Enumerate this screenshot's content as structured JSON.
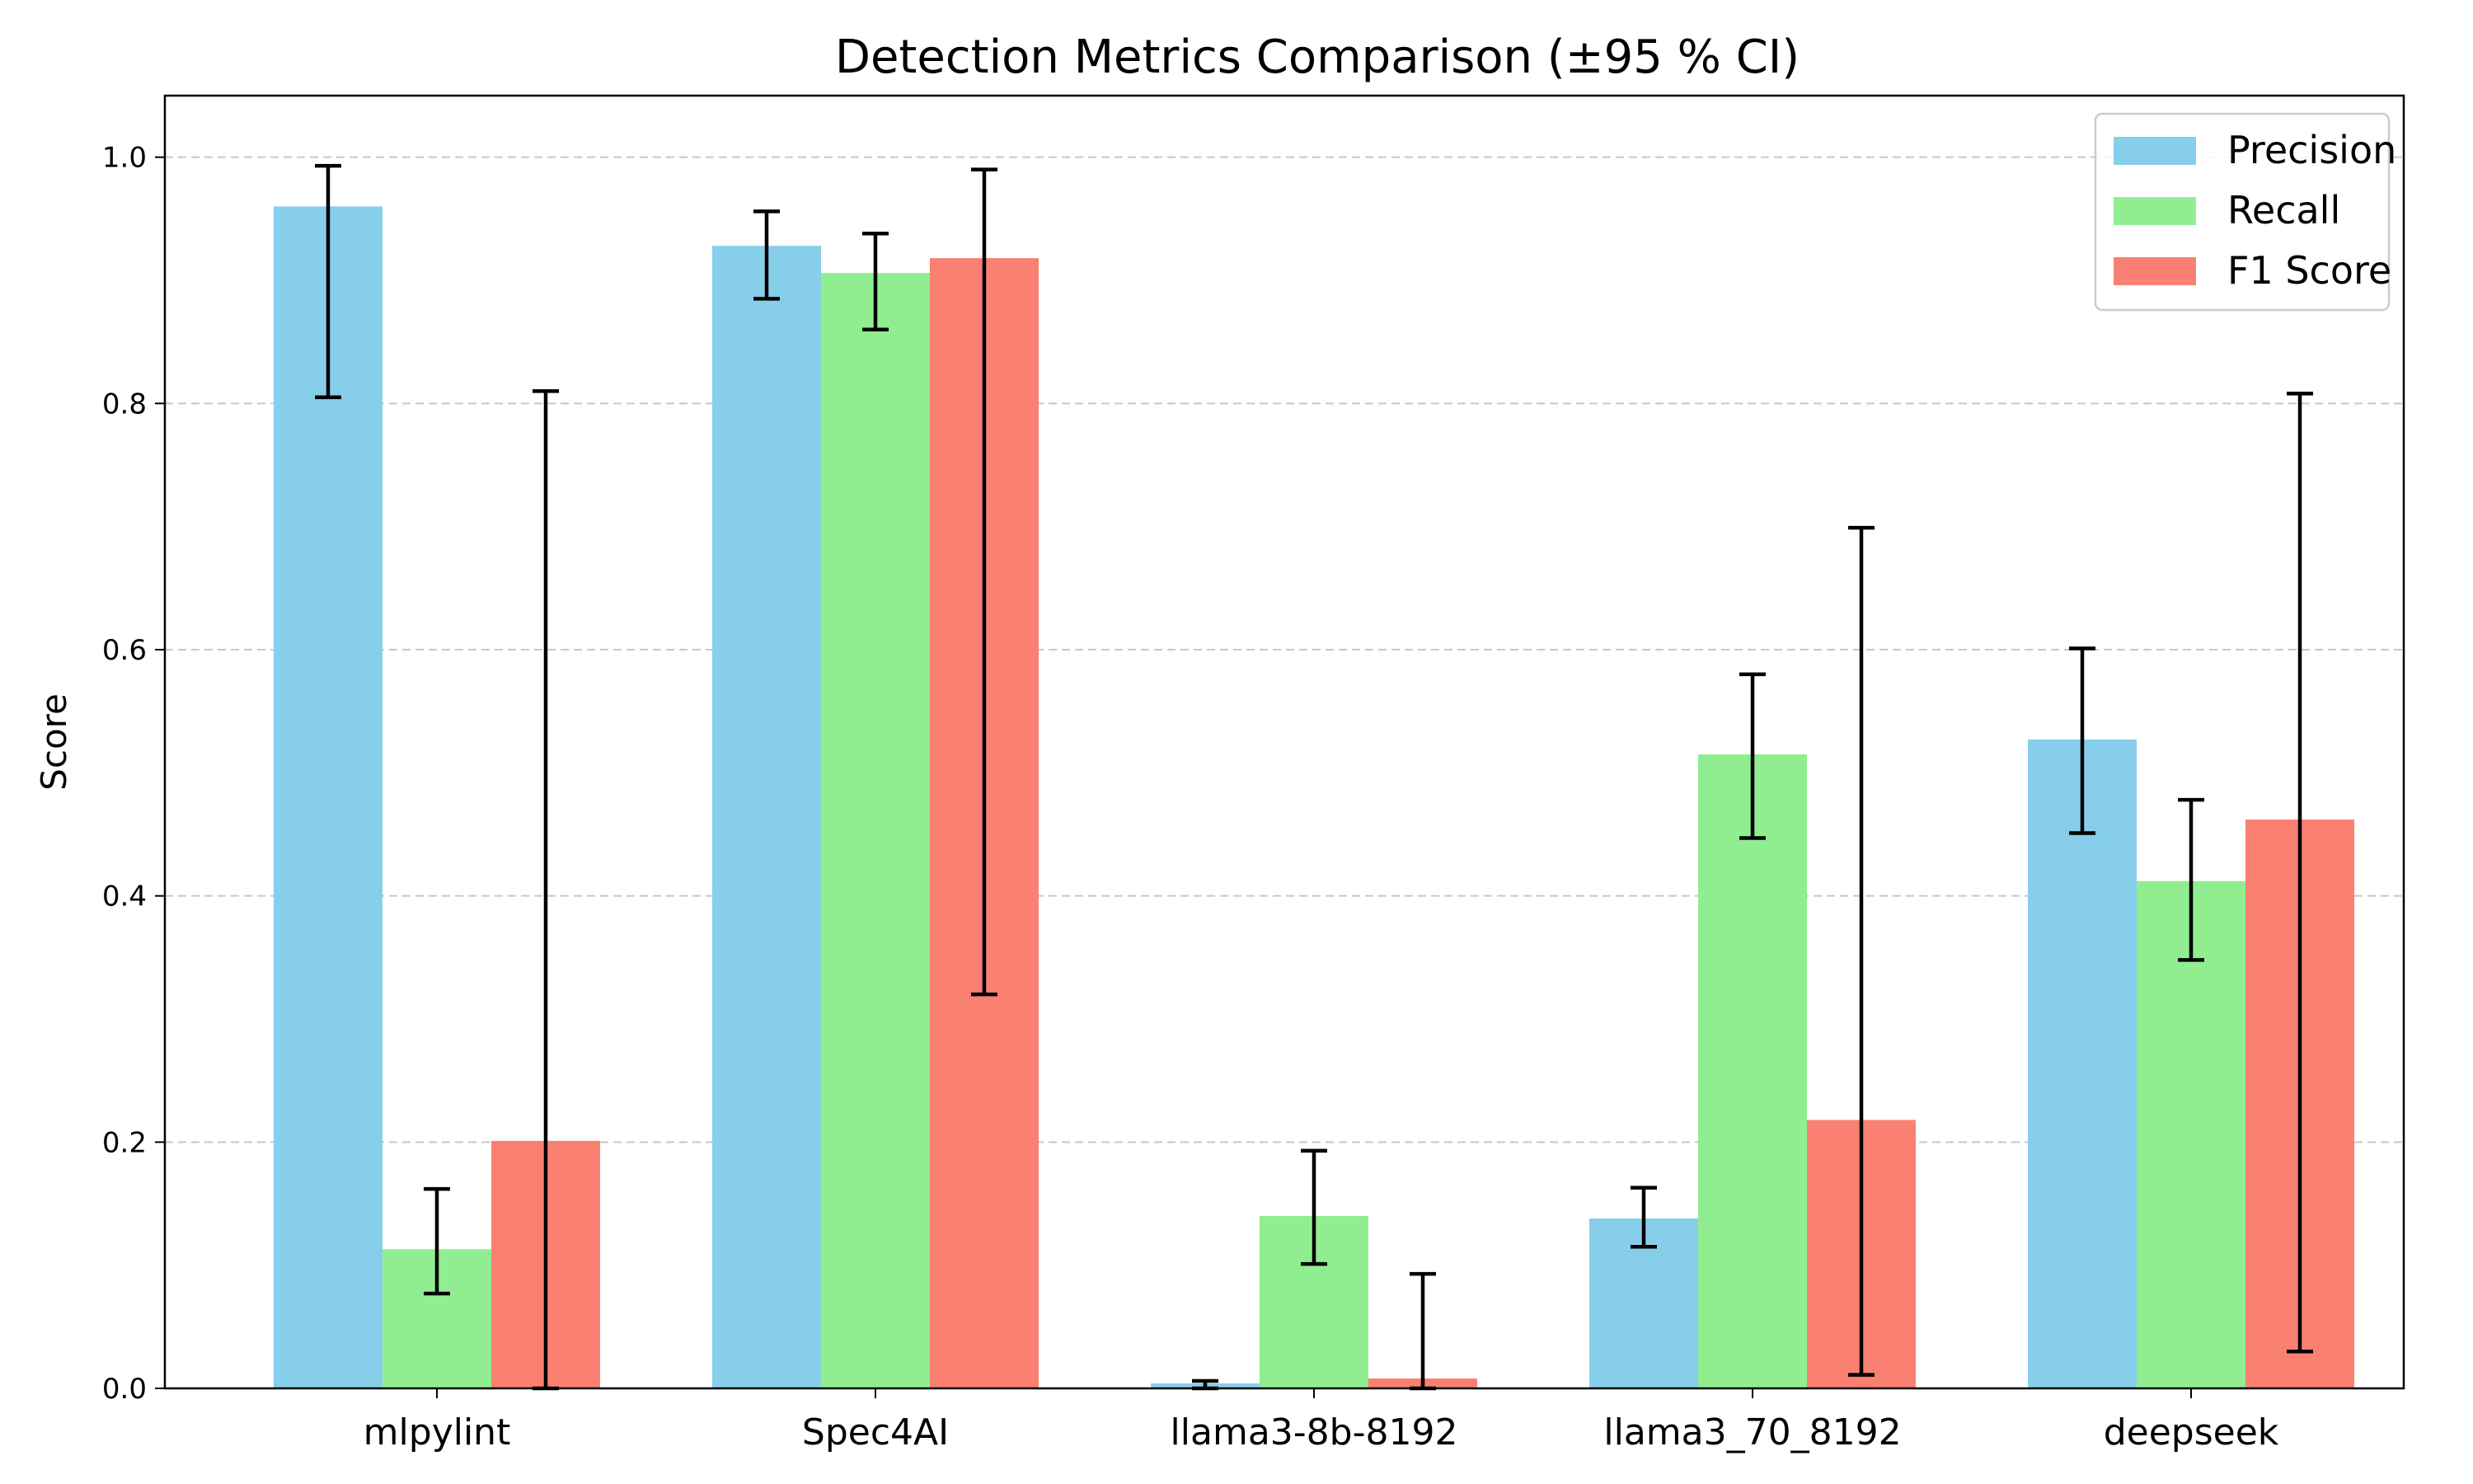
{
  "chart_data": {
    "type": "bar",
    "title": "Detection Metrics Comparison (±95 % CI)",
    "xlabel": "",
    "ylabel": "Score",
    "ylim": [
      0,
      1.05
    ],
    "yticks": [
      0.0,
      0.2,
      0.4,
      0.6,
      0.8,
      1.0
    ],
    "ytick_labels": [
      "0.0",
      "0.2",
      "0.4",
      "0.6",
      "0.8",
      "1.0"
    ],
    "grid": "y-dashed",
    "legend_position": "top-right",
    "categories": [
      "mlpylint",
      "Spec4AI",
      "llama3-8b-8192",
      "llama3_70_8192",
      "deepseek"
    ],
    "series": [
      {
        "name": "Precision",
        "color": "#87CEEB",
        "values": [
          0.96,
          0.928,
          0.004,
          0.138,
          0.527
        ],
        "ci_low": [
          0.805,
          0.885,
          0.0,
          0.115,
          0.451
        ],
        "ci_high": [
          0.993,
          0.956,
          0.006,
          0.163,
          0.601
        ]
      },
      {
        "name": "Recall",
        "color": "#90EE90",
        "values": [
          0.113,
          0.906,
          0.14,
          0.515,
          0.412
        ],
        "ci_low": [
          0.077,
          0.86,
          0.101,
          0.447,
          0.348
        ],
        "ci_high": [
          0.162,
          0.938,
          0.193,
          0.58,
          0.478
        ]
      },
      {
        "name": "F1 Score",
        "color": "#FA8072",
        "values": [
          0.201,
          0.918,
          0.008,
          0.218,
          0.462
        ],
        "ci_low": [
          0.0,
          0.32,
          0.0,
          0.011,
          0.03
        ],
        "ci_high": [
          0.81,
          0.99,
          0.093,
          0.699,
          0.808
        ]
      }
    ]
  }
}
